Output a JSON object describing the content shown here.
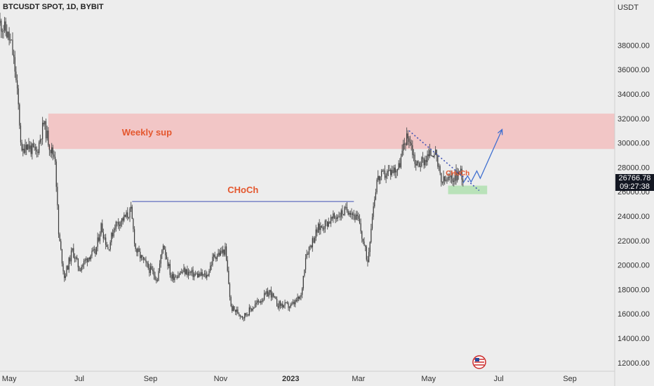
{
  "header": {
    "title": "BTCUSDT SPOT, 1D, BYBIT"
  },
  "price_badge": {
    "price": "26766.78",
    "countdown": "09:27:38"
  },
  "chart_data": {
    "type": "candlestick",
    "symbol": "BTCUSDT SPOT, 1D, BYBIT",
    "y_axis_unit": "USDT",
    "ylim": [
      11300,
      41700
    ],
    "y_ticks": [
      {
        "value": 12000,
        "label": "12000.00"
      },
      {
        "value": 14000,
        "label": "14000.00"
      },
      {
        "value": 16000,
        "label": "16000.00"
      },
      {
        "value": 18000,
        "label": "18000.00"
      },
      {
        "value": 20000,
        "label": "20000.00"
      },
      {
        "value": 22000,
        "label": "22000.00"
      },
      {
        "value": 24000,
        "label": "24000.00"
      },
      {
        "value": 26000,
        "label": "26000.00"
      },
      {
        "value": 28000,
        "label": "28000.00"
      },
      {
        "value": 30000,
        "label": "30000.00"
      },
      {
        "value": 32000,
        "label": "32000.00"
      },
      {
        "value": 34000,
        "label": "34000.00"
      },
      {
        "value": 36000,
        "label": "36000.00"
      },
      {
        "value": 38000,
        "label": "38000.00"
      }
    ],
    "x_range": [
      "2022-04-23",
      "2023-10-10"
    ],
    "x_ticks": [
      {
        "date": "2022-05-01",
        "label": "May"
      },
      {
        "date": "2022-07-01",
        "label": "Jul"
      },
      {
        "date": "2022-09-01",
        "label": "Sep"
      },
      {
        "date": "2022-11-01",
        "label": "Nov"
      },
      {
        "date": "2023-01-01",
        "label": "2023",
        "bold": true
      },
      {
        "date": "2023-03-01",
        "label": "Mar"
      },
      {
        "date": "2023-05-01",
        "label": "May"
      },
      {
        "date": "2023-07-01",
        "label": "Jul"
      },
      {
        "date": "2023-09-01",
        "label": "Sep"
      }
    ],
    "close_path": [
      {
        "date": "2022-04-23",
        "price": 39800
      },
      {
        "date": "2022-04-28",
        "price": 39200
      },
      {
        "date": "2022-05-03",
        "price": 38000
      },
      {
        "date": "2022-05-06",
        "price": 36000
      },
      {
        "date": "2022-05-09",
        "price": 33000
      },
      {
        "date": "2022-05-12",
        "price": 29000
      },
      {
        "date": "2022-05-15",
        "price": 30000
      },
      {
        "date": "2022-05-20",
        "price": 29500
      },
      {
        "date": "2022-05-25",
        "price": 29200
      },
      {
        "date": "2022-05-31",
        "price": 31600
      },
      {
        "date": "2022-06-06",
        "price": 29500
      },
      {
        "date": "2022-06-10",
        "price": 28800
      },
      {
        "date": "2022-06-13",
        "price": 22500
      },
      {
        "date": "2022-06-18",
        "price": 19000
      },
      {
        "date": "2022-06-25",
        "price": 21200
      },
      {
        "date": "2022-07-01",
        "price": 19700
      },
      {
        "date": "2022-07-10",
        "price": 20800
      },
      {
        "date": "2022-07-15",
        "price": 21000
      },
      {
        "date": "2022-07-20",
        "price": 23200
      },
      {
        "date": "2022-07-26",
        "price": 21300
      },
      {
        "date": "2022-08-01",
        "price": 23300
      },
      {
        "date": "2022-08-10",
        "price": 23900
      },
      {
        "date": "2022-08-15",
        "price": 24400
      },
      {
        "date": "2022-08-19",
        "price": 21300
      },
      {
        "date": "2022-08-28",
        "price": 20000
      },
      {
        "date": "2022-09-07",
        "price": 18900
      },
      {
        "date": "2022-09-12",
        "price": 21800
      },
      {
        "date": "2022-09-19",
        "price": 19000
      },
      {
        "date": "2022-09-30",
        "price": 19500
      },
      {
        "date": "2022-10-10",
        "price": 19200
      },
      {
        "date": "2022-10-20",
        "price": 19100
      },
      {
        "date": "2022-10-26",
        "price": 20700
      },
      {
        "date": "2022-11-05",
        "price": 21200
      },
      {
        "date": "2022-11-08",
        "price": 18500
      },
      {
        "date": "2022-11-10",
        "price": 16500
      },
      {
        "date": "2022-11-21",
        "price": 15800
      },
      {
        "date": "2022-12-05",
        "price": 17100
      },
      {
        "date": "2022-12-14",
        "price": 17800
      },
      {
        "date": "2022-12-20",
        "price": 16800
      },
      {
        "date": "2023-01-01",
        "price": 16600
      },
      {
        "date": "2023-01-10",
        "price": 17400
      },
      {
        "date": "2023-01-14",
        "price": 20800
      },
      {
        "date": "2023-01-25",
        "price": 23000
      },
      {
        "date": "2023-02-02",
        "price": 23500
      },
      {
        "date": "2023-02-15",
        "price": 24300
      },
      {
        "date": "2023-02-21",
        "price": 24600
      },
      {
        "date": "2023-03-01",
        "price": 23600
      },
      {
        "date": "2023-03-09",
        "price": 20300
      },
      {
        "date": "2023-03-13",
        "price": 24200
      },
      {
        "date": "2023-03-17",
        "price": 27000
      },
      {
        "date": "2023-03-25",
        "price": 27500
      },
      {
        "date": "2023-04-05",
        "price": 28000
      },
      {
        "date": "2023-04-11",
        "price": 30300
      },
      {
        "date": "2023-04-14",
        "price": 30500
      },
      {
        "date": "2023-04-20",
        "price": 28200
      },
      {
        "date": "2023-04-26",
        "price": 28500
      },
      {
        "date": "2023-05-06",
        "price": 29400
      },
      {
        "date": "2023-05-12",
        "price": 26800
      },
      {
        "date": "2023-05-20",
        "price": 27000
      },
      {
        "date": "2023-05-29",
        "price": 27700
      },
      {
        "date": "2023-06-01",
        "price": 26800
      }
    ],
    "annotations": {
      "weekly_zone": {
        "label": "Weekly sup",
        "from": "2022-06-04",
        "to": "2023-10-10",
        "low": 29500,
        "high": 32400,
        "color": "#f2c6c6",
        "label_color": "#e4572e"
      },
      "choch_line": {
        "label": "CHoCh",
        "from": "2022-08-16",
        "to": "2023-02-25",
        "price": 25200,
        "color": "#3f51b5",
        "label_color": "#e4572e"
      },
      "choch_small": {
        "label": "CHoCh",
        "date": "2023-05-16",
        "price": 27500
      },
      "demand_zone": {
        "from": "2023-05-18",
        "to": "2023-06-21",
        "low": 25800,
        "high": 26500,
        "color": "#b9e2b9"
      },
      "dotted_trend": {
        "from_date": "2023-04-14",
        "from_price": 31000,
        "to_date": "2023-06-14",
        "to_price": 26100,
        "color": "#3f51b5"
      },
      "projection": [
        {
          "date": "2023-05-31",
          "price": 26700
        },
        {
          "date": "2023-06-04",
          "price": 27300
        },
        {
          "date": "2023-06-07",
          "price": 26800
        },
        {
          "date": "2023-06-12",
          "price": 27700
        },
        {
          "date": "2023-06-15",
          "price": 27100
        },
        {
          "date": "2023-07-04",
          "price": 31100
        }
      ]
    }
  }
}
